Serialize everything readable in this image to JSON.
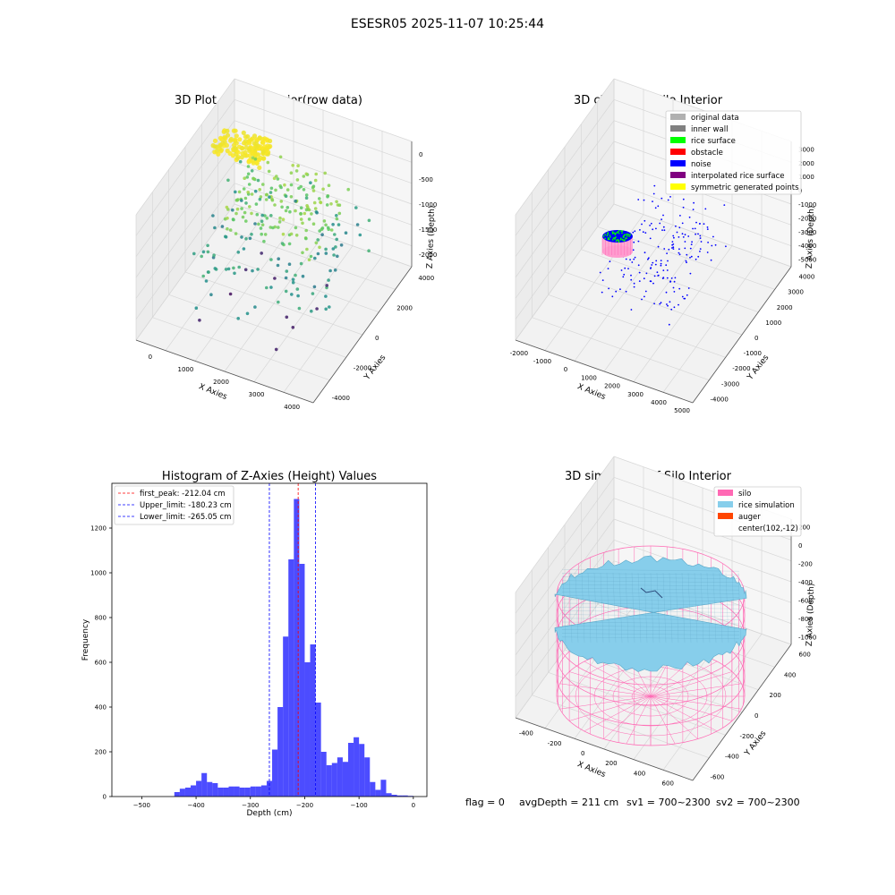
{
  "figure": {
    "suptitle": "ESESR05 2025-11-07 10:25:44",
    "footer": {
      "flag": "flag = 0",
      "avg": "avgDepth = 211 cm",
      "sv1": "sv1 = 700~2300",
      "sv2": "sv2 = 700~2300"
    }
  },
  "chart_data": [
    {
      "type": "scatter",
      "projection": "3d",
      "title": "3D Plot of Silo Interior(row data)",
      "xlabel": "X Axies",
      "ylabel": "Y Axies",
      "zlabel": "Z Axies (Depth)",
      "x_ticks": [
        "0",
        "1000",
        "2000",
        "3000",
        "4000"
      ],
      "y_ticks": [
        "-4000",
        "-2000",
        "0",
        "2000",
        "4000"
      ],
      "z_ticks": [
        "-2000",
        "-1500",
        "-1000",
        "-500",
        "0"
      ],
      "xlim": [
        -500,
        4500
      ],
      "ylim": [
        -4500,
        4500
      ],
      "zlim": [
        -2300,
        100
      ],
      "colormap": "viridis",
      "grid": true
    },
    {
      "type": "scatter",
      "projection": "3d",
      "title": "3D classify of Silo Interior",
      "zlabel": "Z Axies (Depth)",
      "xlabel": "X Axies",
      "ylabel": "Y Axies",
      "x_ticks": [
        "-2000",
        "-1000",
        "0",
        "1000",
        "2000",
        "3000",
        "4000",
        "5000"
      ],
      "y_ticks": [
        "-4000",
        "-3000",
        "-2000",
        "-1000",
        "0",
        "1000",
        "2000",
        "3000",
        "4000"
      ],
      "z_ticks": [
        "-5000",
        "-4000",
        "-3000",
        "-2000",
        "-1000",
        "0",
        "1000",
        "2000",
        "3000"
      ],
      "xlim": [
        -2500,
        5500
      ],
      "ylim": [
        -4500,
        4500
      ],
      "zlim": [
        -5500,
        3500
      ],
      "legend": {
        "position": "upper-right",
        "items": [
          {
            "label": "original data",
            "color": "#b0b0b0"
          },
          {
            "label": "inner wall",
            "color": "#808080"
          },
          {
            "label": "rice surface",
            "color": "#00ff00"
          },
          {
            "label": "obstacle",
            "color": "#ff0000"
          },
          {
            "label": "noise",
            "color": "#0000ff"
          },
          {
            "label": "interpolated rice surface",
            "color": "#800080"
          },
          {
            "label": "symmetric generated points",
            "color": "#ffff00"
          }
        ]
      },
      "grid": true
    },
    {
      "type": "bar",
      "title": "Histogram of Z-Axies (Height) Values",
      "xlabel": "Depth (cm)",
      "ylabel": "Frequency",
      "x_ticks": [
        -500,
        -400,
        -300,
        -200,
        -100,
        0
      ],
      "y_ticks": [
        0,
        200,
        400,
        600,
        800,
        1000,
        1200
      ],
      "xlim": [
        -555,
        25
      ],
      "ylim": [
        0,
        1400
      ],
      "bar_color": "#0000ff",
      "bar_opacity": 0.7,
      "bin_width": 10,
      "bins": [
        {
          "x0": -440,
          "count": 20
        },
        {
          "x0": -430,
          "count": 35
        },
        {
          "x0": -420,
          "count": 40
        },
        {
          "x0": -410,
          "count": 50
        },
        {
          "x0": -400,
          "count": 70
        },
        {
          "x0": -390,
          "count": 105
        },
        {
          "x0": -380,
          "count": 65
        },
        {
          "x0": -370,
          "count": 60
        },
        {
          "x0": -360,
          "count": 40
        },
        {
          "x0": -350,
          "count": 40
        },
        {
          "x0": -340,
          "count": 45
        },
        {
          "x0": -330,
          "count": 45
        },
        {
          "x0": -320,
          "count": 40
        },
        {
          "x0": -310,
          "count": 40
        },
        {
          "x0": -300,
          "count": 45
        },
        {
          "x0": -290,
          "count": 45
        },
        {
          "x0": -280,
          "count": 50
        },
        {
          "x0": -270,
          "count": 70
        },
        {
          "x0": -260,
          "count": 210
        },
        {
          "x0": -250,
          "count": 400
        },
        {
          "x0": -240,
          "count": 715
        },
        {
          "x0": -230,
          "count": 1060
        },
        {
          "x0": -220,
          "count": 1330
        },
        {
          "x0": -210,
          "count": 1040
        },
        {
          "x0": -200,
          "count": 600
        },
        {
          "x0": -190,
          "count": 680
        },
        {
          "x0": -180,
          "count": 420
        },
        {
          "x0": -170,
          "count": 200
        },
        {
          "x0": -160,
          "count": 140
        },
        {
          "x0": -150,
          "count": 150
        },
        {
          "x0": -140,
          "count": 175
        },
        {
          "x0": -130,
          "count": 155
        },
        {
          "x0": -120,
          "count": 240
        },
        {
          "x0": -110,
          "count": 265
        },
        {
          "x0": -100,
          "count": 235
        },
        {
          "x0": -90,
          "count": 175
        },
        {
          "x0": -80,
          "count": 65
        },
        {
          "x0": -70,
          "count": 30
        },
        {
          "x0": -60,
          "count": 75
        },
        {
          "x0": -50,
          "count": 15
        },
        {
          "x0": -40,
          "count": 8
        },
        {
          "x0": -30,
          "count": 5
        },
        {
          "x0": -20,
          "count": 5
        },
        {
          "x0": -10,
          "count": 3
        }
      ],
      "vlines": [
        {
          "label": "first_peak: -212.04 cm",
          "x": -212.04,
          "color": "#ff0000"
        },
        {
          "label": "Upper_limit: -180.23 cm",
          "x": -180.23,
          "color": "#0000ff"
        },
        {
          "label": "Lower_limit: -265.05 cm",
          "x": -265.05,
          "color": "#0000ff"
        }
      ],
      "legend_position": "upper-left"
    },
    {
      "type": "surface",
      "projection": "3d",
      "title": "3D simulation of Silo Interior",
      "xlabel": "X Axies",
      "ylabel": "Y Axies",
      "zlabel": "Z Axies (Depth)",
      "x_ticks": [
        "-400",
        "-200",
        "0",
        "200",
        "400",
        "600"
      ],
      "y_ticks": [
        "-600",
        "-400",
        "-200",
        "0",
        "200",
        "400",
        "600"
      ],
      "z_ticks": [
        "-1000",
        "-800",
        "-600",
        "-400",
        "-200",
        "0",
        "200"
      ],
      "xlim": [
        -550,
        750
      ],
      "ylim": [
        -700,
        700
      ],
      "zlim": [
        -1050,
        300
      ],
      "legend": {
        "position": "upper-right",
        "items": [
          {
            "label": "silo",
            "color": "#ff69b4"
          },
          {
            "label": "rice simulation",
            "color": "#87ceeb"
          },
          {
            "label": "auger",
            "color": "#ff4500"
          },
          {
            "label": "center(102,-12)",
            "color": ""
          }
        ]
      },
      "grid": true
    }
  ]
}
